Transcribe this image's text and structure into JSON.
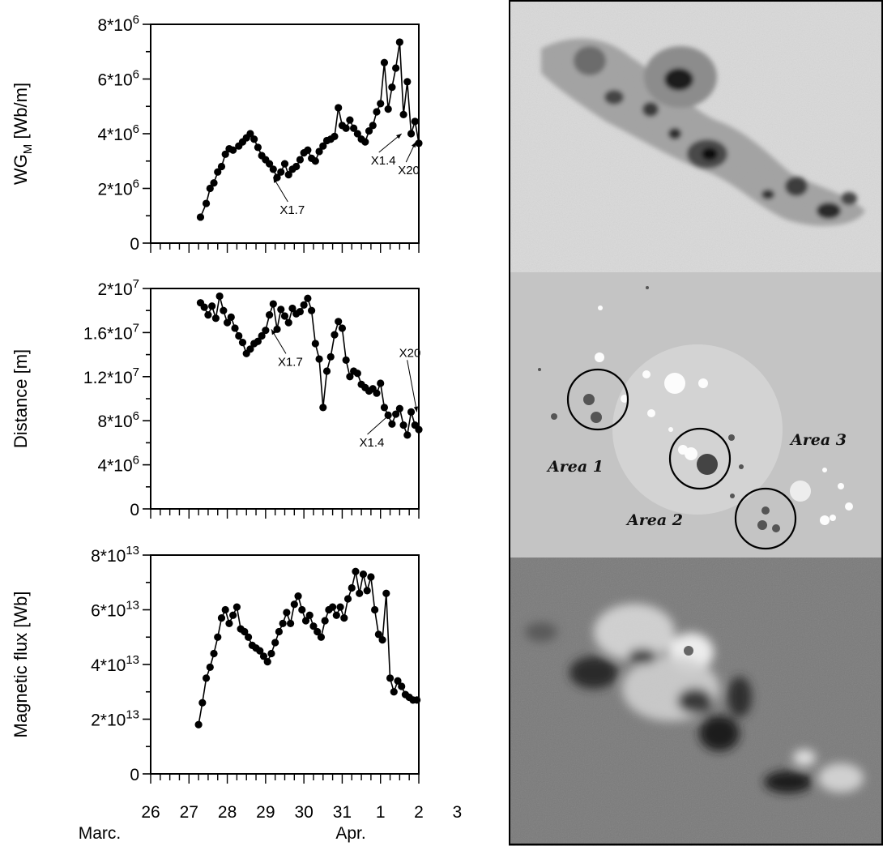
{
  "x_axis": {
    "tick_labels": [
      "26",
      "27",
      "28",
      "29",
      "30",
      "31",
      "1",
      "2",
      "3"
    ],
    "month_labels": [
      "Marc.",
      "Apr."
    ]
  },
  "panels_right": {
    "area_labels": [
      "Area 1",
      "Area 2",
      "Area 3"
    ]
  },
  "chart_data": [
    {
      "type": "line",
      "ylabel_base": "WG",
      "ylabel_sub": "M",
      "ylabel_unit": "[Wb/m]",
      "ylim": [
        0,
        8000000
      ],
      "xlim": [
        26,
        33
      ],
      "ytick_mantissa": [
        "0",
        "2*10",
        "4*10",
        "6*10",
        "8*10"
      ],
      "ytick_exp": [
        "",
        "6",
        "6",
        "6",
        "6"
      ],
      "ytick_values": [
        0,
        2000000,
        4000000,
        6000000,
        8000000
      ],
      "series": [
        {
          "marker": "circle",
          "x": [
            27.3,
            27.45,
            27.55,
            27.65,
            27.75,
            27.85,
            27.95,
            28.05,
            28.15,
            28.3,
            28.4,
            28.5,
            28.6,
            28.7,
            28.8,
            28.9,
            29.0,
            29.1,
            29.2,
            29.3,
            29.4,
            29.5,
            29.6,
            29.7,
            29.8,
            29.9,
            30.0,
            30.1,
            30.2,
            30.3,
            30.4,
            30.5,
            30.6,
            30.7,
            30.8,
            30.9,
            31.0,
            31.1,
            31.2,
            31.3,
            31.4,
            31.5,
            31.6,
            31.7,
            31.8,
            31.9,
            32.0,
            32.1,
            32.2,
            32.3,
            32.4,
            32.5,
            32.6,
            32.7,
            32.8,
            32.9,
            33.0
          ],
          "y": [
            950000,
            1450000,
            2000000,
            2200000,
            2600000,
            2800000,
            3250000,
            3450000,
            3400000,
            3550000,
            3700000,
            3850000,
            4000000,
            3800000,
            3500000,
            3200000,
            3050000,
            2900000,
            2700000,
            2400000,
            2600000,
            2900000,
            2500000,
            2700000,
            2800000,
            3050000,
            3300000,
            3400000,
            3100000,
            3000000,
            3350000,
            3550000,
            3750000,
            3800000,
            3900000,
            4950000,
            4300000,
            4200000,
            4500000,
            4200000,
            4000000,
            3800000,
            3700000,
            4100000,
            4300000,
            4800000,
            5100000,
            6600000,
            4900000,
            5700000,
            6400000,
            7350000,
            4700000,
            5900000,
            4000000,
            4450000,
            3650000
          ]
        }
      ],
      "annotations": [
        {
          "text": "X1.7",
          "x": 29.2,
          "y": 2400000
        },
        {
          "text": "X1.4",
          "x": 32.55,
          "y": 4000000
        },
        {
          "text": "X20",
          "x": 32.92,
          "y": 3700000
        }
      ]
    },
    {
      "type": "line",
      "ylabel": "Distance [m]",
      "ylim": [
        0,
        20000000
      ],
      "xlim": [
        26,
        33
      ],
      "ytick_mantissa": [
        "0",
        "4*10",
        "8*10",
        "1.2*10",
        "1.6*10",
        "2*10"
      ],
      "ytick_exp": [
        "",
        "6",
        "6",
        "7",
        "7",
        "7"
      ],
      "ytick_values": [
        0,
        4000000,
        8000000,
        12000000,
        16000000,
        20000000
      ],
      "series": [
        {
          "marker": "circle",
          "x": [
            27.3,
            27.4,
            27.5,
            27.6,
            27.7,
            27.8,
            27.9,
            28.0,
            28.1,
            28.2,
            28.3,
            28.4,
            28.5,
            28.6,
            28.7,
            28.8,
            28.9,
            29.0,
            29.1,
            29.2,
            29.3,
            29.4,
            29.5,
            29.6,
            29.7,
            29.8,
            29.9,
            30.0,
            30.1,
            30.2,
            30.3,
            30.4,
            30.5,
            30.6,
            30.7,
            30.8,
            30.9,
            31.0,
            31.1,
            31.2,
            31.3,
            31.4,
            31.5,
            31.6,
            31.7,
            31.8,
            31.9,
            32.0,
            32.1,
            32.2,
            32.3,
            32.4,
            32.5,
            32.6,
            32.7,
            32.8,
            32.9,
            33.0
          ],
          "y": [
            18700000,
            18300000,
            17600000,
            18400000,
            17300000,
            19300000,
            18000000,
            16900000,
            17400000,
            16400000,
            15700000,
            15100000,
            14100000,
            14500000,
            15000000,
            15200000,
            15700000,
            16200000,
            17600000,
            18600000,
            16300000,
            18100000,
            17500000,
            16900000,
            18200000,
            17700000,
            17900000,
            18500000,
            19100000,
            18000000,
            15000000,
            13600000,
            9200000,
            12500000,
            13800000,
            15800000,
            17000000,
            16400000,
            13500000,
            12000000,
            12500000,
            12300000,
            11300000,
            11000000,
            10700000,
            10900000,
            10500000,
            11400000,
            9200000,
            8500000,
            7700000,
            8600000,
            9100000,
            7600000,
            6700000,
            8800000,
            7600000,
            7200000
          ]
        }
      ],
      "annotations": [
        {
          "text": "X1.7",
          "x": 29.15,
          "y": 16300000
        },
        {
          "text": "X1.4",
          "x": 32.25,
          "y": 8600000
        },
        {
          "text": "X20",
          "x": 32.95,
          "y": 8800000
        }
      ]
    },
    {
      "type": "line",
      "ylabel": "Magnetic flux [Wb]",
      "ylim": [
        0,
        80000000000000
      ],
      "xlim": [
        26,
        33
      ],
      "ytick_mantissa": [
        "0",
        "2*10",
        "4*10",
        "6*10",
        "8*10"
      ],
      "ytick_exp": [
        "",
        "13",
        "13",
        "13",
        "13"
      ],
      "ytick_values": [
        0,
        20000000000000,
        40000000000000,
        60000000000000,
        80000000000000
      ],
      "series": [
        {
          "marker": "circle",
          "x": [
            27.25,
            27.35,
            27.45,
            27.55,
            27.65,
            27.75,
            27.85,
            27.95,
            28.05,
            28.15,
            28.25,
            28.35,
            28.45,
            28.55,
            28.65,
            28.75,
            28.85,
            28.95,
            29.05,
            29.15,
            29.25,
            29.35,
            29.45,
            29.55,
            29.65,
            29.75,
            29.85,
            29.95,
            30.05,
            30.15,
            30.25,
            30.35,
            30.45,
            30.55,
            30.65,
            30.75,
            30.85,
            30.95,
            31.05,
            31.15,
            31.25,
            31.35,
            31.45,
            31.55,
            31.65,
            31.75,
            31.85,
            31.95,
            32.05,
            32.15,
            32.25,
            32.35,
            32.45,
            32.55,
            32.65,
            32.75,
            32.85,
            32.95
          ],
          "y": [
            18000000000000,
            26000000000000,
            35000000000000,
            39000000000000,
            44000000000000,
            50000000000000,
            57000000000000,
            60000000000000,
            55000000000000,
            58000000000000,
            61000000000000,
            53000000000000,
            52000000000000,
            50000000000000,
            47000000000000,
            46000000000000,
            45000000000000,
            43000000000000,
            41000000000000,
            44000000000000,
            48000000000000,
            52000000000000,
            55000000000000,
            59000000000000,
            55000000000000,
            62000000000000,
            65000000000000,
            60000000000000,
            56000000000000,
            58000000000000,
            54000000000000,
            52000000000000,
            50000000000000,
            56000000000000,
            60000000000000,
            61000000000000,
            58000000000000,
            61000000000000,
            57000000000000,
            64000000000000,
            68000000000000,
            74000000000000,
            66000000000000,
            73000000000000,
            67000000000000,
            72000000000000,
            60000000000000,
            51000000000000,
            49000000000000,
            66000000000000,
            35000000000000,
            30000000000000,
            34000000000000,
            32000000000000,
            29000000000000,
            28000000000000,
            27000000000000,
            27000000000000
          ]
        }
      ]
    }
  ]
}
